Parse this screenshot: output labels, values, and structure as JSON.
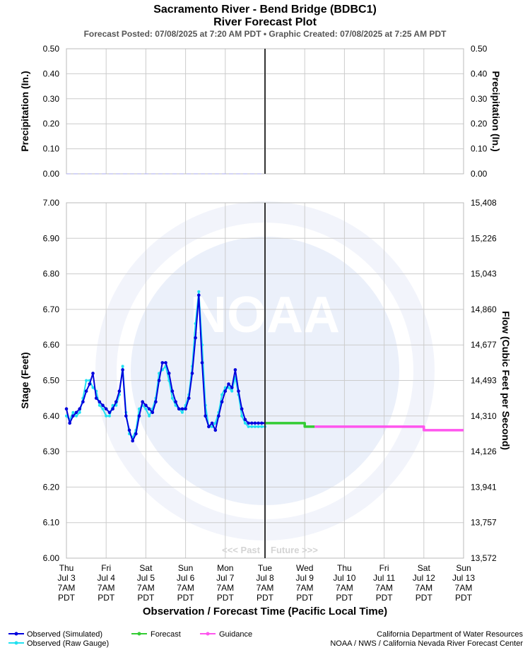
{
  "title": "Sacramento River - Bend Bridge (BDBC1)",
  "subtitle": "River Forecast Plot",
  "posted": "Forecast Posted: 07/08/2025 at 7:20 AM PDT  •  Graphic Created: 07/08/2025 at 7:25 AM PDT",
  "past_label": "<<< Past",
  "future_label": "Future >>>",
  "credit_line1": "California Department of Water Resources",
  "credit_line2": "NOAA / NWS / California Nevada River Forecast Center",
  "watermark": "NOAA",
  "colors": {
    "observed_simulated": "#0000dd",
    "observed_raw": "#22e0f0",
    "forecast": "#33cc33",
    "guidance": "#ff55ee",
    "now_line": "#333333",
    "grid": "#cccccc"
  },
  "legend": [
    {
      "label": "Observed (Simulated)",
      "color": "#0000dd"
    },
    {
      "label": "Forecast",
      "color": "#33cc33"
    },
    {
      "label": "Guidance",
      "color": "#ff55ee"
    },
    {
      "label": "Observed (Raw Gauge)",
      "color": "#22e0f0"
    }
  ],
  "chart_data": [
    {
      "type": "line",
      "title": "",
      "ylabel_left": "Precipitation (In.)",
      "ylabel_right": "Precipitation (In.)",
      "ylim": [
        0,
        0.5
      ],
      "yticks": [
        "0.50",
        "0.40",
        "0.30",
        "0.20",
        "0.10",
        "0.00"
      ],
      "series": [
        {
          "values": [
            [
              0,
              0
            ],
            [
              5,
              0
            ]
          ]
        }
      ]
    },
    {
      "type": "line",
      "xlabel": "Observation / Forecast Time (Pacific Local Time)",
      "ylabel_left": "Stage (Feet)",
      "ylabel_right": "Flow (Cubic Feet per Second)",
      "ylim": [
        6.0,
        7.0
      ],
      "yticks_left": [
        "7.00",
        "6.90",
        "6.80",
        "6.70",
        "6.60",
        "6.50",
        "6.40",
        "6.30",
        "6.20",
        "6.10",
        "6.00"
      ],
      "yticks_right": [
        "15,408",
        "15,226",
        "15,043",
        "14,860",
        "14,677",
        "14,493",
        "14,310",
        "14,126",
        "13,941",
        "13,757",
        "13,572"
      ],
      "x_ticks": [
        [
          "Thu",
          "Jul 3",
          "7AM",
          "PDT"
        ],
        [
          "Fri",
          "Jul 4",
          "7AM",
          "PDT"
        ],
        [
          "Sat",
          "Jul 5",
          "7AM",
          "PDT"
        ],
        [
          "Sun",
          "Jul 6",
          "7AM",
          "PDT"
        ],
        [
          "Mon",
          "Jul 7",
          "7AM",
          "PDT"
        ],
        [
          "Tue",
          "Jul 8",
          "7AM",
          "PDT"
        ],
        [
          "Wed",
          "Jul 9",
          "7AM",
          "PDT"
        ],
        [
          "Thu",
          "Jul 10",
          "7AM",
          "PDT"
        ],
        [
          "Fri",
          "Jul 11",
          "7AM",
          "PDT"
        ],
        [
          "Sat",
          "Jul 12",
          "7AM",
          "PDT"
        ],
        [
          "Sun",
          "Jul 13",
          "7AM",
          "PDT"
        ]
      ],
      "x_start": "Jul 3 7AM PDT",
      "now": "Jul 8 7AM PDT",
      "series": [
        {
          "name": "Observed (Simulated)",
          "x": [
            "Jul 3 7AM",
            "Jul 3 9AM",
            "Jul 3 11AM",
            "Jul 3 1PM",
            "Jul 3 3PM",
            "Jul 3 5PM",
            "Jul 3 7PM",
            "Jul 3 9PM",
            "Jul 3 11PM",
            "Jul 4 1AM",
            "Jul 4 3AM",
            "Jul 4 5AM",
            "Jul 4 7AM",
            "Jul 4 9AM",
            "Jul 4 11AM",
            "Jul 4 1PM",
            "Jul 4 3PM",
            "Jul 4 5PM",
            "Jul 4 7PM",
            "Jul 4 9PM",
            "Jul 4 11PM",
            "Jul 5 1AM",
            "Jul 5 3AM",
            "Jul 5 5AM",
            "Jul 5 7AM",
            "Jul 5 9AM",
            "Jul 5 11AM",
            "Jul 5 1PM",
            "Jul 5 3PM",
            "Jul 5 5PM",
            "Jul 5 7PM",
            "Jul 5 9PM",
            "Jul 5 11PM",
            "Jul 6 1AM",
            "Jul 6 3AM",
            "Jul 6 5AM",
            "Jul 6 7AM",
            "Jul 6 9AM",
            "Jul 6 11AM",
            "Jul 6 1PM",
            "Jul 6 3PM",
            "Jul 6 5PM",
            "Jul 6 7PM",
            "Jul 6 9PM",
            "Jul 6 11PM",
            "Jul 7 1AM",
            "Jul 7 3AM",
            "Jul 7 5AM",
            "Jul 7 7AM",
            "Jul 7 9AM",
            "Jul 7 11AM",
            "Jul 7 1PM",
            "Jul 7 3PM",
            "Jul 7 5PM",
            "Jul 7 7PM",
            "Jul 7 9PM",
            "Jul 7 11PM",
            "Jul 8 1AM",
            "Jul 8 3AM",
            "Jul 8 5AM",
            "Jul 8 7AM"
          ],
          "values": [
            6.42,
            6.38,
            6.4,
            6.41,
            6.42,
            6.44,
            6.47,
            6.49,
            6.52,
            6.45,
            6.44,
            6.43,
            6.42,
            6.41,
            6.42,
            6.44,
            6.47,
            6.53,
            6.4,
            6.36,
            6.33,
            6.35,
            6.4,
            6.44,
            6.43,
            6.42,
            6.41,
            6.44,
            6.5,
            6.55,
            6.55,
            6.52,
            6.47,
            6.44,
            6.42,
            6.42,
            6.42,
            6.45,
            6.52,
            6.62,
            6.74,
            6.55,
            6.4,
            6.37,
            6.38,
            6.36,
            6.4,
            6.44,
            6.47,
            6.49,
            6.48,
            6.53,
            6.47,
            6.42,
            6.39,
            6.38,
            6.38,
            6.38,
            6.38,
            6.38,
            6.38
          ]
        },
        {
          "name": "Observed (Raw Gauge)",
          "x": [
            "Jul 3 7AM",
            "Jul 3 9AM",
            "Jul 3 11AM",
            "Jul 3 1PM",
            "Jul 3 3PM",
            "Jul 3 5PM",
            "Jul 3 7PM",
            "Jul 3 9PM",
            "Jul 3 11PM",
            "Jul 4 1AM",
            "Jul 4 3AM",
            "Jul 4 5AM",
            "Jul 4 7AM",
            "Jul 4 9AM",
            "Jul 4 11AM",
            "Jul 4 1PM",
            "Jul 4 3PM",
            "Jul 4 5PM",
            "Jul 4 7PM",
            "Jul 4 9PM",
            "Jul 4 11PM",
            "Jul 5 1AM",
            "Jul 5 3AM",
            "Jul 5 5AM",
            "Jul 5 7AM",
            "Jul 5 9AM",
            "Jul 5 11AM",
            "Jul 5 1PM",
            "Jul 5 3PM",
            "Jul 5 5PM",
            "Jul 5 7PM",
            "Jul 5 9PM",
            "Jul 5 11PM",
            "Jul 6 1AM",
            "Jul 6 3AM",
            "Jul 6 5AM",
            "Jul 6 7AM",
            "Jul 6 9AM",
            "Jul 6 11AM",
            "Jul 6 1PM",
            "Jul 6 3PM",
            "Jul 6 5PM",
            "Jul 6 7PM",
            "Jul 6 9PM",
            "Jul 6 11PM",
            "Jul 7 1AM",
            "Jul 7 3AM",
            "Jul 7 5AM",
            "Jul 7 7AM",
            "Jul 7 9AM",
            "Jul 7 11AM",
            "Jul 7 1PM",
            "Jul 7 3PM",
            "Jul 7 5PM",
            "Jul 7 7PM",
            "Jul 7 9PM",
            "Jul 7 11PM",
            "Jul 8 1AM",
            "Jul 8 3AM",
            "Jul 8 5AM",
            "Jul 8 7AM"
          ],
          "values": [
            6.4,
            6.39,
            6.41,
            6.4,
            6.41,
            6.45,
            6.5,
            6.5,
            6.48,
            6.47,
            6.43,
            6.42,
            6.4,
            6.4,
            6.43,
            6.43,
            6.46,
            6.54,
            6.41,
            6.35,
            6.34,
            6.36,
            6.42,
            6.43,
            6.42,
            6.4,
            6.42,
            6.45,
            6.52,
            6.53,
            6.54,
            6.5,
            6.45,
            6.43,
            6.42,
            6.41,
            6.43,
            6.46,
            6.54,
            6.66,
            6.75,
            6.6,
            6.43,
            6.37,
            6.37,
            6.38,
            6.41,
            6.46,
            6.48,
            6.48,
            6.47,
            6.51,
            6.46,
            6.4,
            6.38,
            6.37,
            6.37,
            6.37,
            6.37,
            6.37,
            6.37
          ]
        },
        {
          "name": "Forecast",
          "x": [
            "Jul 8 7AM",
            "Jul 9 7AM",
            "Jul 9 7AM",
            "Jul 9 1PM"
          ],
          "values": [
            6.38,
            6.38,
            6.37,
            6.37
          ]
        },
        {
          "name": "Guidance",
          "x": [
            "Jul 9 1PM",
            "Jul 12 7AM",
            "Jul 12 7AM",
            "Jul 13 7AM"
          ],
          "values": [
            6.37,
            6.37,
            6.36,
            6.36
          ]
        }
      ]
    }
  ]
}
